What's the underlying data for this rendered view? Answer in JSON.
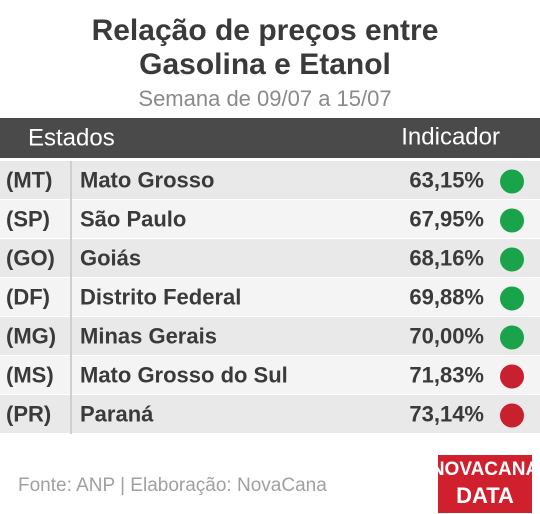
{
  "header": {
    "title_lines": [
      "Relação de preços entre",
      "Gasolina e Etanol"
    ],
    "subtitle": "Semana de 09/07 a 15/07"
  },
  "table": {
    "columns": [
      "Estados",
      "Indicador"
    ],
    "rows": [
      {
        "code": "(MT)",
        "state": "Mato Grosso",
        "value": "63,15%",
        "indicator_color": "#1aa34a"
      },
      {
        "code": "(SP)",
        "state": "São Paulo",
        "value": "67,95%",
        "indicator_color": "#1aa34a"
      },
      {
        "code": "(GO)",
        "state": "Goiás",
        "value": "68,16%",
        "indicator_color": "#1aa34a"
      },
      {
        "code": "(DF)",
        "state": "Distrito Federal",
        "value": "69,88%",
        "indicator_color": "#1aa34a"
      },
      {
        "code": "(MG)",
        "state": "Minas Gerais",
        "value": "70,00%",
        "indicator_color": "#1aa34a"
      },
      {
        "code": "(MS)",
        "state": "Mato Grosso do Sul",
        "value": "71,83%",
        "indicator_color": "#c8202f"
      },
      {
        "code": "(PR)",
        "state": "Paraná",
        "value": "73,14%",
        "indicator_color": "#c8202f"
      }
    ]
  },
  "footer": {
    "source": "Fonte: ANP | Elaboração: NovaCana",
    "logo_lines": [
      "NOVACANA",
      "DATA"
    ]
  }
}
